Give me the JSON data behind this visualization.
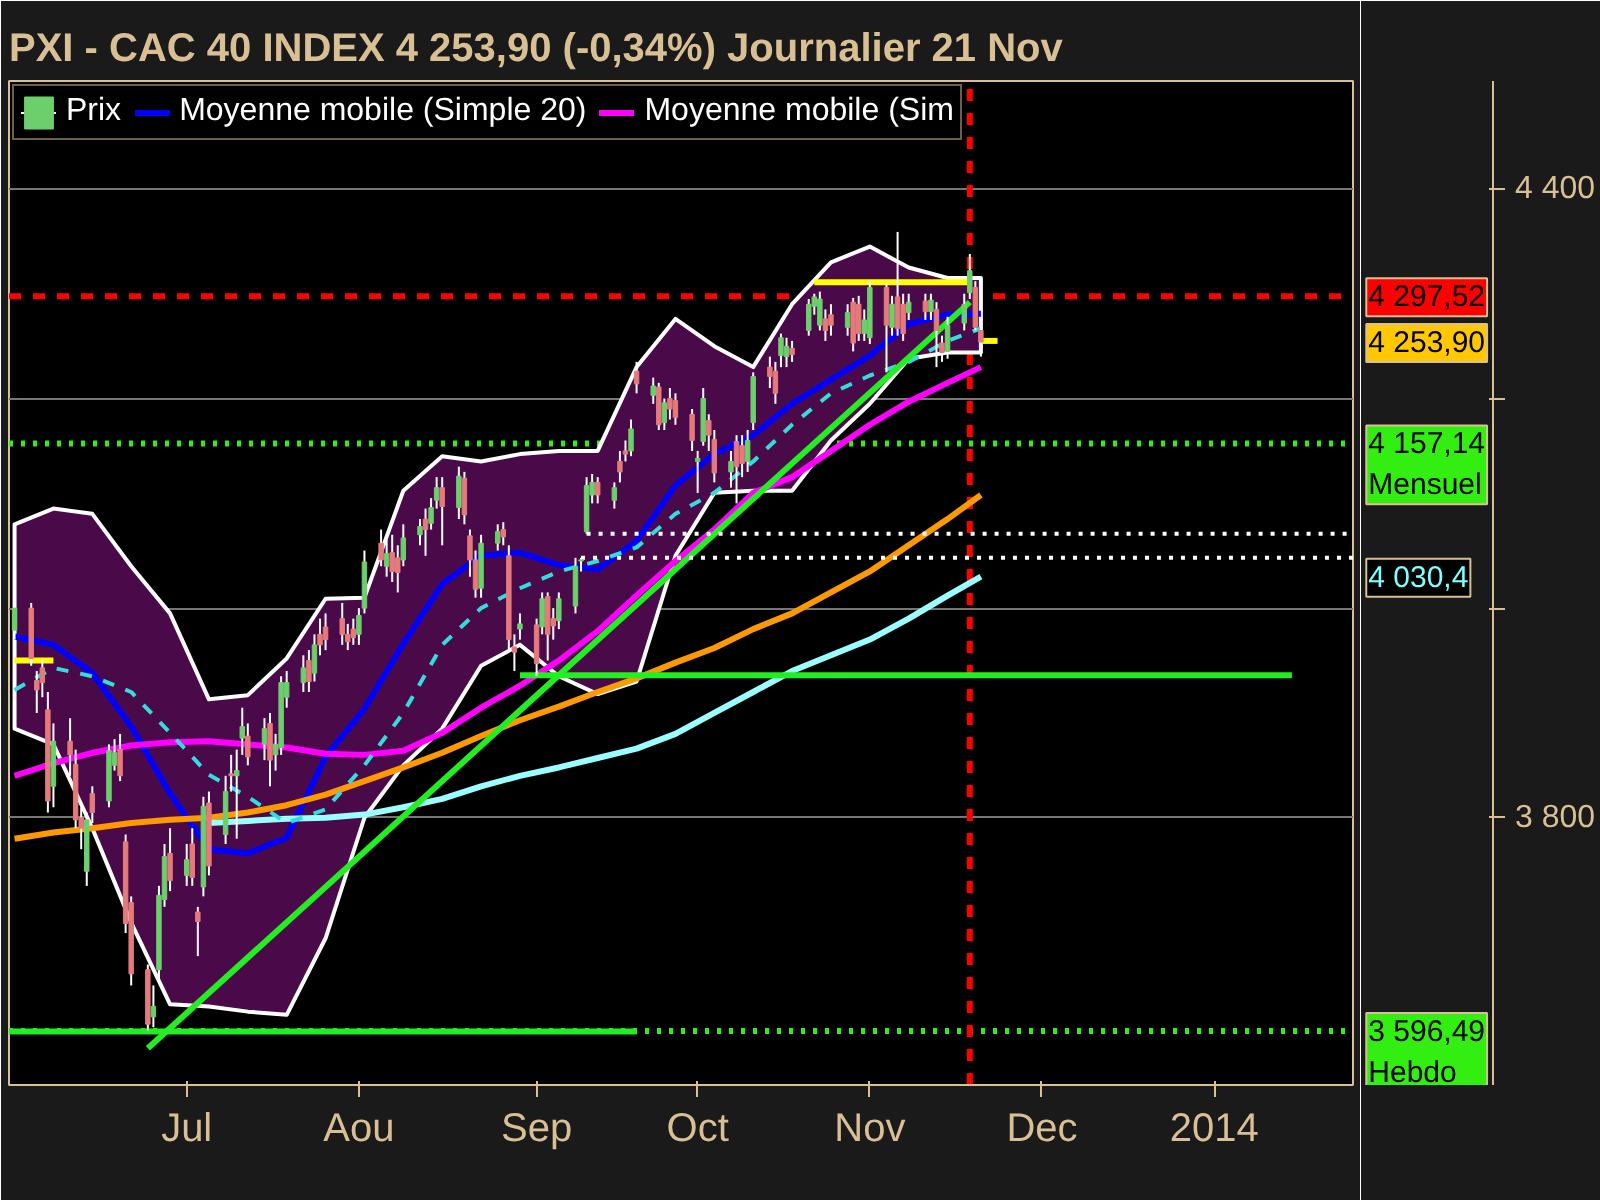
{
  "chart_data": {
    "type": "candlestick",
    "title": "PXI - CAC 40 INDEX    4 253,90 (-0,34%)    Journalier  21 Nov",
    "xlim": [
      "2013-05-30",
      "2014-01-27"
    ],
    "xticks": [
      {
        "value": "2013-07-01",
        "label": "Jul"
      },
      {
        "value": "2013-08-01",
        "label": "Aou"
      },
      {
        "value": "2013-09-02",
        "label": "Sep"
      },
      {
        "value": "2013-10-01",
        "label": "Oct"
      },
      {
        "value": "2013-11-01",
        "label": "Nov"
      },
      {
        "value": "2013-12-02",
        "label": "Dec"
      },
      {
        "value": "2014-01-02",
        "label": "2014"
      }
    ],
    "ylim": [
      3545,
      4503
    ],
    "yticks": [
      {
        "value": 3800,
        "label": "3 800"
      },
      {
        "value": 4000,
        "label": null
      },
      {
        "value": 4200,
        "label": null
      },
      {
        "value": 4400,
        "label": "4 400"
      }
    ],
    "grid": "y",
    "legend": "top left",
    "series": [
      {
        "type": "candlestick",
        "name": "Prix",
        "color": "#ffffff",
        "colors": [
          "#6ccf6c",
          "#e47a7a",
          "#e47a7a",
          "#e47a7a",
          "#e47a7a",
          "#6ccf6c",
          "#e47a7a",
          "#e47a7a",
          "#e47a7a",
          "#6ccf6c",
          "#e47a7a",
          "#6ccf6c",
          "#6ccf6c",
          "#e47a7a",
          "#e47a7a",
          "#e47a7a",
          "#e47a7a",
          "#6ccf6c",
          "#6ccf6c",
          "#6ccf6c",
          "#e47a7a",
          "#6ccf6c",
          "#e47a7a",
          "#e47a7a",
          "#6ccf6c",
          "#e47a7a",
          "#6ccf6c",
          "#e47a7a",
          "#6ccf6c",
          "#6ccf6c",
          "#e47a7a",
          "#6ccf6c",
          "#e47a7a",
          "#6ccf6c",
          "#6ccf6c",
          "#6ccf6c",
          "#6ccf6c",
          "#e47a7a",
          "#6ccf6c",
          "#e47a7a",
          "#e47a7a",
          "#e47a7a",
          "#e47a7a",
          "#e47a7a",
          "#6ccf6c",
          "#6ccf6c",
          "#e47a7a",
          "#6ccf6c",
          "#e47a7a",
          "#e47a7a",
          "#6ccf6c",
          "#6ccf6c",
          "#e47a7a",
          "#6ccf6c",
          "#6ccf6c",
          "#e47a7a",
          "#6ccf6c",
          "#e47a7a",
          "#e47a7a",
          "#e47a7a",
          "#6ccf6c",
          "#6ccf6c",
          "#e47a7a",
          "#e47a7a",
          "#e47a7a",
          "#6ccf6c",
          "#e47a7a",
          "#6ccf6c",
          "#e47a7a",
          "#e47a7a",
          "#6ccf6c",
          "#6ccf6c",
          "#6ccf6c",
          "#6ccf6c",
          "#6ccf6c",
          "#e47a7a",
          "#6ccf6c",
          "#e47a7a",
          "#e47a7a",
          "#6ccf6c",
          "#e47a7a",
          "#6ccf6c",
          "#e47a7a",
          "#6ccf6c",
          "#e47a7a",
          "#e47a7a",
          "#e47a7a",
          "#6ccf6c",
          "#6ccf6c",
          "#e47a7a",
          "#e47a7a",
          "#6ccf6c",
          "#e47a7a",
          "#e47a7a",
          "#6ccf6c",
          "#6ccf6c",
          "#e47a7a",
          "#e47a7a",
          "#6ccf6c",
          "#6ccf6c",
          "#e47a7a",
          "#6ccf6c",
          "#6ccf6c",
          "#6ccf6c",
          "#e47a7a",
          "#e47a7a",
          "#6ccf6c",
          "#e47a7a",
          "#e47a7a",
          "#6ccf6c",
          "#6ccf6c",
          "#e47a7a",
          "#6ccf6c",
          "#e47a7a",
          "#e47a7a",
          "#6ccf6c",
          "#e47a7a",
          "#6ccf6c",
          "#e47a7a",
          "#e47a7a",
          "#6ccf6c",
          "#6ccf6c",
          "#6ccf6c",
          "#e47a7a",
          "#e47a7a"
        ],
        "x": [
          "2013-05-31",
          "2013-06-03",
          "2013-06-04",
          "2013-06-05",
          "2013-06-06",
          "2013-06-07",
          "2013-06-10",
          "2013-06-11",
          "2013-06-12",
          "2013-06-13",
          "2013-06-14",
          "2013-06-17",
          "2013-06-18",
          "2013-06-19",
          "2013-06-20",
          "2013-06-21",
          "2013-06-24",
          "2013-06-25",
          "2013-06-26",
          "2013-06-27",
          "2013-06-28",
          "2013-07-01",
          "2013-07-02",
          "2013-07-03",
          "2013-07-04",
          "2013-07-05",
          "2013-07-08",
          "2013-07-09",
          "2013-07-10",
          "2013-07-11",
          "2013-07-12",
          "2013-07-15",
          "2013-07-16",
          "2013-07-17",
          "2013-07-18",
          "2013-07-19",
          "2013-07-22",
          "2013-07-23",
          "2013-07-24",
          "2013-07-25",
          "2013-07-26",
          "2013-07-29",
          "2013-07-30",
          "2013-07-31",
          "2013-08-01",
          "2013-08-02",
          "2013-08-05",
          "2013-08-06",
          "2013-08-07",
          "2013-08-08",
          "2013-08-09",
          "2013-08-12",
          "2013-08-13",
          "2013-08-14",
          "2013-08-15",
          "2013-08-16",
          "2013-08-19",
          "2013-08-20",
          "2013-08-21",
          "2013-08-22",
          "2013-08-23",
          "2013-08-26",
          "2013-08-27",
          "2013-08-28",
          "2013-08-29",
          "2013-08-30",
          "2013-09-02",
          "2013-09-03",
          "2013-09-04",
          "2013-09-05",
          "2013-09-06",
          "2013-09-09",
          "2013-09-10",
          "2013-09-11",
          "2013-09-12",
          "2013-09-13",
          "2013-09-16",
          "2013-09-17",
          "2013-09-18",
          "2013-09-19",
          "2013-09-20",
          "2013-09-23",
          "2013-09-24",
          "2013-09-25",
          "2013-09-26",
          "2013-09-27",
          "2013-09-30",
          "2013-10-01",
          "2013-10-02",
          "2013-10-03",
          "2013-10-04",
          "2013-10-07",
          "2013-10-08",
          "2013-10-09",
          "2013-10-10",
          "2013-10-11",
          "2013-10-14",
          "2013-10-15",
          "2013-10-16",
          "2013-10-17",
          "2013-10-18",
          "2013-10-21",
          "2013-10-22",
          "2013-10-23",
          "2013-10-24",
          "2013-10-25",
          "2013-10-28",
          "2013-10-29",
          "2013-10-30",
          "2013-10-31",
          "2013-11-01",
          "2013-11-04",
          "2013-11-05",
          "2013-11-06",
          "2013-11-07",
          "2013-11-08",
          "2013-11-11",
          "2013-11-12",
          "2013-11-13",
          "2013-11-14",
          "2013-11-15",
          "2013-11-18",
          "2013-11-19",
          "2013-11-20",
          "2013-11-21"
        ],
        "ohlc": [
          [
            3979,
            4010,
            3970,
            4000
          ],
          [
            4000,
            4005,
            3945,
            3952
          ],
          [
            3931,
            3940,
            3900,
            3922
          ],
          [
            3943,
            3950,
            3915,
            3929
          ],
          [
            3903,
            3920,
            3805,
            3816
          ],
          [
            3830,
            3890,
            3810,
            3873
          ],
          [
            3873,
            3895,
            3840,
            3860
          ],
          [
            3851,
            3865,
            3790,
            3798
          ],
          [
            3800,
            3810,
            3770,
            3790
          ],
          [
            3749,
            3805,
            3735,
            3798
          ],
          [
            3823,
            3830,
            3795,
            3805
          ],
          [
            3816,
            3870,
            3810,
            3864
          ],
          [
            3850,
            3875,
            3845,
            3862
          ],
          [
            3865,
            3880,
            3835,
            3840
          ],
          [
            3777,
            3784,
            3690,
            3699
          ],
          [
            3719,
            3725,
            3640,
            3651
          ],
          [
            3655,
            3660,
            3597,
            3603
          ],
          [
            3610,
            3640,
            3600,
            3620
          ],
          [
            3655,
            3735,
            3645,
            3726
          ],
          [
            3722,
            3775,
            3715,
            3763
          ],
          [
            3766,
            3790,
            3730,
            3740
          ],
          [
            3745,
            3775,
            3735,
            3760
          ],
          [
            3775,
            3790,
            3735,
            3743
          ],
          [
            3710,
            3715,
            3668,
            3701
          ],
          [
            3734,
            3820,
            3725,
            3811
          ],
          [
            3814,
            3825,
            3745,
            3754
          ],
          [
            3784,
            3840,
            3775,
            3825
          ],
          [
            3842,
            3860,
            3825,
            3840
          ],
          [
            3840,
            3865,
            3780,
            3845
          ],
          [
            3876,
            3905,
            3860,
            3887
          ],
          [
            3878,
            3890,
            3850,
            3858
          ],
          [
            3870,
            3895,
            3855,
            3885
          ],
          [
            3890,
            3900,
            3830,
            3855
          ],
          [
            3860,
            3880,
            3845,
            3870
          ],
          [
            3867,
            3935,
            3860,
            3929
          ],
          [
            3915,
            3940,
            3905,
            3929
          ],
          [
            3929,
            3955,
            3920,
            3943
          ],
          [
            3950,
            3960,
            3920,
            3930
          ],
          [
            3938,
            3975,
            3930,
            3965
          ],
          [
            3975,
            3990,
            3955,
            3965
          ],
          [
            3982,
            3995,
            3960,
            3970
          ],
          [
            3990,
            4005,
            3965,
            3975
          ],
          [
            3975,
            3985,
            3960,
            3968
          ],
          [
            3980,
            3990,
            3965,
            3972
          ],
          [
            3975,
            4000,
            3965,
            3993
          ],
          [
            4000,
            4055,
            3995,
            4044
          ],
          [
            4062,
            4075,
            4040,
            4046
          ],
          [
            4040,
            4065,
            4030,
            4052
          ],
          [
            4053,
            4070,
            4025,
            4035
          ],
          [
            4048,
            4060,
            4015,
            4034
          ],
          [
            4046,
            4080,
            4040,
            4067
          ],
          [
            4070,
            4085,
            4060,
            4078
          ],
          [
            4085,
            4095,
            4050,
            4075
          ],
          [
            4081,
            4105,
            4075,
            4096
          ],
          [
            4103,
            4125,
            4095,
            4115
          ],
          [
            4115,
            4125,
            4060,
            4097
          ],
          [
            4096,
            4135,
            4085,
            4126
          ],
          [
            4124,
            4130,
            4080,
            4089
          ],
          [
            4069,
            4075,
            4030,
            4046
          ],
          [
            4046,
            4055,
            4010,
            4018
          ],
          [
            4019,
            4070,
            4010,
            4062
          ],
          [
            4062,
            4080,
            4055,
            4073
          ],
          [
            4075,
            4082,
            4060,
            4068
          ],
          [
            4050,
            4060,
            3960,
            3970
          ],
          [
            3963,
            3975,
            3940,
            3958
          ],
          [
            3980,
            3995,
            3970,
            3985
          ],
          [
            3984,
            3990,
            3935,
            3947
          ],
          [
            3982,
            4015,
            3975,
            4009
          ],
          [
            4011,
            4015,
            3950,
            3975
          ],
          [
            3990,
            4000,
            3970,
            3983
          ],
          [
            3988,
            4015,
            3980,
            4009
          ],
          [
            4002,
            4048,
            3995,
            4040
          ],
          [
            4045,
            4048,
            4035,
            4046
          ],
          [
            4073,
            4125,
            4071,
            4117
          ],
          [
            4108,
            4128,
            4100,
            4120
          ],
          [
            4120,
            4125,
            4100,
            4108
          ],
          [
            4103,
            4120,
            4095,
            4115
          ],
          [
            4140,
            4150,
            4120,
            4130
          ],
          [
            4150,
            4160,
            4140,
            4147
          ],
          [
            4150,
            4180,
            4145,
            4171
          ],
          [
            4226,
            4235,
            4205,
            4214
          ],
          [
            4203,
            4220,
            4195,
            4212
          ],
          [
            4211,
            4215,
            4170,
            4175
          ],
          [
            4177,
            4200,
            4170,
            4196
          ],
          [
            4200,
            4210,
            4180,
            4190
          ],
          [
            4198,
            4205,
            4175,
            4182
          ],
          [
            4185,
            4190,
            4150,
            4160
          ],
          [
            4140,
            4150,
            4110,
            4143
          ],
          [
            4159,
            4210,
            4155,
            4200
          ],
          [
            4179,
            4185,
            4150,
            4165
          ],
          [
            4161,
            4170,
            4120,
            4129
          ],
          [
            4130,
            4150,
            4115,
            4140
          ],
          [
            4159,
            4165,
            4100,
            4135
          ],
          [
            4155,
            4165,
            4125,
            4138
          ],
          [
            4140,
            4170,
            4130,
            4160
          ],
          [
            4177,
            4225,
            4170,
            4221
          ],
          [
            4230,
            4240,
            4210,
            4221
          ],
          [
            4226,
            4235,
            4195,
            4205
          ],
          [
            4241,
            4262,
            4230,
            4258
          ],
          [
            4240,
            4258,
            4230,
            4250
          ],
          [
            4248,
            4255,
            4235,
            4242
          ],
          [
            4265,
            4295,
            4260,
            4290
          ],
          [
            4288,
            4300,
            4280,
            4297
          ],
          [
            4270,
            4302,
            4265,
            4295
          ],
          [
            4276,
            4285,
            4255,
            4265
          ],
          [
            4280,
            4290,
            4260,
            4270
          ],
          [
            4268,
            4290,
            4260,
            4282
          ],
          [
            4292,
            4296,
            4245,
            4253
          ],
          [
            4290,
            4298,
            4255,
            4262
          ],
          [
            4262,
            4285,
            4255,
            4275
          ],
          [
            4258,
            4312,
            4252,
            4306
          ],
          [
            4306,
            4310,
            4225,
            4270
          ],
          [
            4268,
            4298,
            4260,
            4290
          ],
          [
            4297,
            4359,
            4260,
            4267
          ],
          [
            4290,
            4300,
            4255,
            4262
          ],
          [
            4282,
            4300,
            4275,
            4292
          ],
          [
            4293,
            4300,
            4275,
            4283
          ],
          [
            4283,
            4300,
            4275,
            4294
          ],
          [
            4285,
            4292,
            4230,
            4265
          ],
          [
            4253,
            4260,
            4235,
            4244
          ],
          [
            4245,
            4278,
            4238,
            4270
          ],
          [
            4272,
            4300,
            4265,
            4290
          ],
          [
            4301,
            4338,
            4295,
            4322
          ],
          [
            4306,
            4312,
            4265,
            4268
          ],
          [
            4265,
            4275,
            4240,
            4253.9
          ]
        ]
      },
      {
        "type": "line",
        "name": "Moyenne mobile (Simple 20)",
        "color": "#0000ff",
        "line_style": "solid",
        "x": [
          "2013-05-31",
          "2013-06-07",
          "2013-06-14",
          "2013-06-21",
          "2013-06-28",
          "2013-07-05",
          "2013-07-12",
          "2013-07-19",
          "2013-07-26",
          "2013-08-02",
          "2013-08-09",
          "2013-08-16",
          "2013-08-23",
          "2013-08-30",
          "2013-09-06",
          "2013-09-13",
          "2013-09-20",
          "2013-09-27",
          "2013-10-04",
          "2013-10-11",
          "2013-10-18",
          "2013-10-25",
          "2013-11-01",
          "2013-11-08",
          "2013-11-15",
          "2013-11-21"
        ],
        "values": [
          3973,
          3965,
          3938,
          3887,
          3823,
          3770,
          3766,
          3781,
          3858,
          3904,
          3966,
          4023,
          4050,
          4053,
          4041,
          4037,
          4064,
          4117,
          4147,
          4165,
          4195,
          4218,
          4241,
          4271,
          4280,
          4281
        ],
        "upper": [
          4080,
          4095,
          4090,
          4040,
          3995,
          3913,
          3917,
          3952,
          4009,
          4010,
          4112,
          4145,
          4140,
          4147,
          4150,
          4150,
          4230,
          4276,
          4250,
          4230,
          4290,
          4330,
          4345,
          4325,
          4315,
          4315
        ],
        "lower": [
          3885,
          3870,
          3790,
          3700,
          3622,
          3620,
          3615,
          3612,
          3685,
          3800,
          3850,
          3885,
          3945,
          3965,
          3935,
          3918,
          3930,
          4050,
          4110,
          4112,
          4112,
          4160,
          4195,
          4238,
          4244,
          4244
        ]
      },
      {
        "type": "line",
        "name": "Moyenne mobile (Sim",
        "color": "#ff00ff",
        "line_style": "solid",
        "x": [
          "2013-05-31",
          "2013-06-07",
          "2013-06-14",
          "2013-06-21",
          "2013-06-28",
          "2013-07-05",
          "2013-07-12",
          "2013-07-19",
          "2013-07-26",
          "2013-08-02",
          "2013-08-09",
          "2013-08-16",
          "2013-08-23",
          "2013-08-30",
          "2013-09-06",
          "2013-09-13",
          "2013-09-20",
          "2013-09-27",
          "2013-10-04",
          "2013-10-11",
          "2013-10-18",
          "2013-10-25",
          "2013-11-01",
          "2013-11-08",
          "2013-11-15",
          "2013-11-21"
        ],
        "values": [
          3840,
          3852,
          3862,
          3869,
          3872,
          3873,
          3870,
          3867,
          3861,
          3860,
          3864,
          3881,
          3905,
          3926,
          3950,
          3978,
          4012,
          4045,
          4075,
          4110,
          4125,
          4150,
          4175,
          4197,
          4215,
          4230
        ]
      },
      {
        "type": "line",
        "color": "#ff9900",
        "line_style": "solid",
        "x": [
          "2013-05-31",
          "2013-06-07",
          "2013-06-14",
          "2013-06-21",
          "2013-06-28",
          "2013-07-05",
          "2013-07-12",
          "2013-07-19",
          "2013-07-26",
          "2013-08-02",
          "2013-08-09",
          "2013-08-16",
          "2013-08-23",
          "2013-08-30",
          "2013-09-06",
          "2013-09-13",
          "2013-09-20",
          "2013-09-27",
          "2013-10-04",
          "2013-10-11",
          "2013-10-18",
          "2013-10-25",
          "2013-11-01",
          "2013-11-08",
          "2013-11-15",
          "2013-11-21"
        ],
        "values": [
          3780,
          3786,
          3790,
          3795,
          3798,
          3800,
          3805,
          3812,
          3822,
          3835,
          3848,
          3862,
          3878,
          3893,
          3906,
          3920,
          3933,
          3948,
          3962,
          3980,
          3995,
          4015,
          4035,
          4060,
          4085,
          4108
        ]
      },
      {
        "type": "line",
        "color": "#99ffff",
        "line_style": "solid",
        "x": [
          "2013-07-05",
          "2013-07-12",
          "2013-07-19",
          "2013-07-26",
          "2013-08-02",
          "2013-08-09",
          "2013-08-16",
          "2013-08-23",
          "2013-08-30",
          "2013-09-06",
          "2013-09-13",
          "2013-09-20",
          "2013-09-27",
          "2013-10-04",
          "2013-10-11",
          "2013-10-18",
          "2013-10-25",
          "2013-11-01",
          "2013-11-08",
          "2013-11-15",
          "2013-11-21"
        ],
        "values": [
          3795,
          3797,
          3799,
          3800,
          3803,
          3810,
          3818,
          3830,
          3840,
          3848,
          3857,
          3866,
          3880,
          3900,
          3920,
          3940,
          3955,
          3970,
          3990,
          4012,
          4030
        ]
      },
      {
        "type": "line",
        "color": "#33dddd",
        "line_style": "dashed",
        "x": [
          "2013-05-31",
          "2013-06-07",
          "2013-06-14",
          "2013-06-21",
          "2013-06-28",
          "2013-07-05",
          "2013-07-12",
          "2013-07-19",
          "2013-07-26",
          "2013-08-02",
          "2013-08-09",
          "2013-08-16",
          "2013-08-23",
          "2013-08-30",
          "2013-09-06",
          "2013-09-13",
          "2013-09-20",
          "2013-09-27",
          "2013-10-04",
          "2013-10-11",
          "2013-10-18",
          "2013-10-25",
          "2013-11-01",
          "2013-11-08",
          "2013-11-15",
          "2013-11-21"
        ],
        "values": [
          3922,
          3943,
          3935,
          3920,
          3881,
          3841,
          3820,
          3795,
          3808,
          3850,
          3900,
          3965,
          4000,
          4019,
          4035,
          4045,
          4058,
          4090,
          4110,
          4140,
          4175,
          4205,
          4222,
          4235,
          4255,
          4267
        ]
      },
      {
        "type": "line",
        "color": "#22ee22",
        "line_style": "solid",
        "x": [
          "2013-06-24",
          "2013-11-19"
        ],
        "values": [
          3580,
          4292
        ]
      },
      {
        "type": "line",
        "color": "#22ee22",
        "line_style": "solid",
        "x": [
          "2013-08-30",
          "2014-01-16"
        ],
        "values": [
          3936,
          3936
        ]
      },
      {
        "type": "line",
        "color": "#22ee22",
        "line_style": "solid",
        "x": [
          "2013-05-30",
          "2013-09-20"
        ],
        "values": [
          3596,
          3596
        ]
      },
      {
        "type": "line",
        "color": "#ffffff",
        "line_style": "dotted",
        "x": [
          "2013-09-10",
          "2014-01-27"
        ],
        "values": [
          4048,
          4048
        ]
      },
      {
        "type": "line",
        "color": "#ffffff",
        "line_style": "dotted",
        "x": [
          "2013-09-11",
          "2014-01-27"
        ],
        "values": [
          4071,
          4071
        ]
      },
      {
        "type": "line",
        "color": "#ffff00",
        "line_style": "solid",
        "x": [
          "2013-05-31",
          "2013-06-07"
        ],
        "values": [
          3950,
          3950
        ]
      },
      {
        "type": "line",
        "color": "#ffff00",
        "line_style": "solid",
        "x": [
          "2013-10-22",
          "2013-11-19"
        ],
        "values": [
          4311,
          4311
        ]
      },
      {
        "type": "line",
        "color": "#ffff00",
        "line_style": "solid",
        "x": [
          "2013-11-21",
          "2013-11-24"
        ],
        "values": [
          4255,
          4255
        ]
      }
    ],
    "ref_lines": [
      {
        "axis": "y",
        "value": 4297.52,
        "label": "4 297,52",
        "color": "#ff0000",
        "line_style": "dashed"
      },
      {
        "axis": "y",
        "value": 4157.14,
        "label": "4 157,14\nMensuel",
        "color": "#33ee11",
        "line_style": "dotted"
      },
      {
        "axis": "y",
        "value": 3596.49,
        "label": "3 596,49\nHebdo",
        "color": "#33ee11",
        "line_style": "dotted"
      },
      {
        "axis": "x",
        "value": "2013-11-19",
        "color": "#ff0000",
        "line_style": "dashed"
      }
    ],
    "annotations": [
      "4 253,90",
      "4 030,4"
    ]
  }
}
